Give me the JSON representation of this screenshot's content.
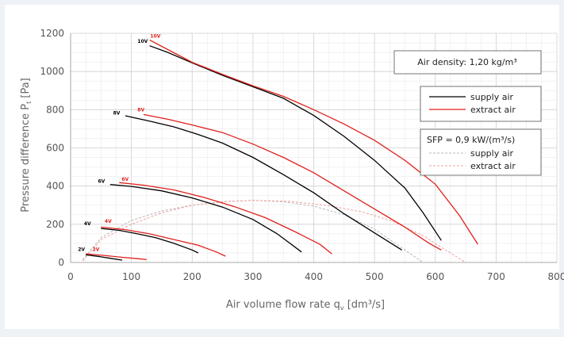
{
  "chart_data": {
    "type": "line",
    "xlabel_main": "Air volume flow rate q",
    "xlabel_sub": "v",
    "xlabel_unit": " [dm³/s]",
    "ylabel_main": "Pressure difference  P",
    "ylabel_sub": "t",
    "ylabel_unit": " [Pa]",
    "xlim": [
      0,
      800
    ],
    "ylim": [
      0,
      1200
    ],
    "x_ticks": [
      0,
      100,
      200,
      300,
      400,
      500,
      600,
      700,
      800
    ],
    "y_ticks": [
      0,
      200,
      400,
      600,
      800,
      1000,
      1200
    ],
    "grid": true,
    "density_note": "Air density: 1,20 kg/m³",
    "legend_main": [
      {
        "label": "supply air",
        "color": "#000000",
        "dashed": false
      },
      {
        "label": "extract air",
        "color": "#e0201b",
        "dashed": false
      }
    ],
    "legend_sfp_title": "SFP = 0,9 kW/(m³/s)",
    "legend_sfp": [
      {
        "label": "supply air",
        "color": "#b8b8b8",
        "dashed": true
      },
      {
        "label": "extract air",
        "color": "#f0a0a0",
        "dashed": true
      }
    ],
    "colors": {
      "supply": "#000000",
      "extract": "#e0201b",
      "sfp_supply": "#b8b8b8",
      "sfp_extract": "#f0a0a0"
    },
    "series": [
      {
        "name": "supply air",
        "voltage": "10V",
        "color": "#000000",
        "points": [
          [
            130,
            1135
          ],
          [
            160,
            1100
          ],
          [
            200,
            1045
          ],
          [
            250,
            980
          ],
          [
            300,
            920
          ],
          [
            350,
            860
          ],
          [
            400,
            770
          ],
          [
            450,
            660
          ],
          [
            500,
            535
          ],
          [
            550,
            390
          ],
          [
            580,
            260
          ],
          [
            610,
            115
          ]
        ]
      },
      {
        "name": "extract air",
        "voltage": "10V",
        "color": "#e0201b",
        "points": [
          [
            130,
            1165
          ],
          [
            160,
            1115
          ],
          [
            200,
            1048
          ],
          [
            250,
            985
          ],
          [
            300,
            925
          ],
          [
            350,
            870
          ],
          [
            400,
            800
          ],
          [
            450,
            725
          ],
          [
            500,
            640
          ],
          [
            550,
            535
          ],
          [
            600,
            410
          ],
          [
            640,
            245
          ],
          [
            670,
            95
          ]
        ]
      },
      {
        "name": "supply air",
        "voltage": "8V",
        "color": "#000000",
        "points": [
          [
            90,
            768
          ],
          [
            130,
            740
          ],
          [
            170,
            710
          ],
          [
            210,
            670
          ],
          [
            250,
            625
          ],
          [
            300,
            550
          ],
          [
            350,
            460
          ],
          [
            400,
            365
          ],
          [
            450,
            255
          ],
          [
            500,
            155
          ],
          [
            545,
            65
          ]
        ]
      },
      {
        "name": "extract air",
        "voltage": "8V",
        "color": "#e0201b",
        "points": [
          [
            120,
            775
          ],
          [
            160,
            750
          ],
          [
            200,
            720
          ],
          [
            250,
            680
          ],
          [
            300,
            620
          ],
          [
            350,
            550
          ],
          [
            400,
            470
          ],
          [
            450,
            375
          ],
          [
            500,
            280
          ],
          [
            550,
            185
          ],
          [
            590,
            100
          ],
          [
            610,
            65
          ]
        ]
      },
      {
        "name": "supply air",
        "voltage": "6V",
        "color": "#000000",
        "points": [
          [
            65,
            408
          ],
          [
            100,
            398
          ],
          [
            150,
            375
          ],
          [
            200,
            338
          ],
          [
            250,
            290
          ],
          [
            300,
            225
          ],
          [
            340,
            150
          ],
          [
            380,
            55
          ]
        ]
      },
      {
        "name": "extract air",
        "voltage": "6V",
        "color": "#e0201b",
        "points": [
          [
            80,
            418
          ],
          [
            120,
            405
          ],
          [
            170,
            380
          ],
          [
            220,
            340
          ],
          [
            270,
            292
          ],
          [
            320,
            235
          ],
          [
            370,
            160
          ],
          [
            410,
            95
          ],
          [
            430,
            45
          ]
        ]
      },
      {
        "name": "supply air",
        "voltage": "4V",
        "color": "#000000",
        "points": [
          [
            50,
            178
          ],
          [
            80,
            168
          ],
          [
            110,
            150
          ],
          [
            140,
            130
          ],
          [
            170,
            100
          ],
          [
            200,
            65
          ],
          [
            210,
            50
          ]
        ]
      },
      {
        "name": "extract air",
        "voltage": "4V",
        "color": "#e0201b",
        "points": [
          [
            50,
            185
          ],
          [
            90,
            172
          ],
          [
            130,
            150
          ],
          [
            170,
            120
          ],
          [
            210,
            90
          ],
          [
            240,
            55
          ],
          [
            255,
            33
          ]
        ]
      },
      {
        "name": "supply air",
        "voltage": "2V",
        "color": "#000000",
        "points": [
          [
            25,
            40
          ],
          [
            45,
            32
          ],
          [
            65,
            22
          ],
          [
            85,
            12
          ]
        ]
      },
      {
        "name": "extract air",
        "voltage": "2V",
        "color": "#e0201b",
        "points": [
          [
            25,
            45
          ],
          [
            55,
            37
          ],
          [
            85,
            27
          ],
          [
            110,
            20
          ],
          [
            125,
            15
          ]
        ]
      }
    ],
    "sfp_series": [
      {
        "name": "supply air",
        "color": "#b8b8b8",
        "points": [
          [
            20,
            15
          ],
          [
            50,
            130
          ],
          [
            100,
            220
          ],
          [
            150,
            270
          ],
          [
            200,
            300
          ],
          [
            250,
            318
          ],
          [
            300,
            325
          ],
          [
            350,
            318
          ],
          [
            400,
            295
          ],
          [
            450,
            250
          ],
          [
            500,
            175
          ],
          [
            550,
            65
          ],
          [
            580,
            0
          ]
        ]
      },
      {
        "name": "extract air",
        "color": "#f0a0a0",
        "points": [
          [
            20,
            8
          ],
          [
            50,
            120
          ],
          [
            100,
            200
          ],
          [
            150,
            260
          ],
          [
            200,
            300
          ],
          [
            260,
            320
          ],
          [
            300,
            325
          ],
          [
            360,
            320
          ],
          [
            420,
            300
          ],
          [
            480,
            265
          ],
          [
            530,
            215
          ],
          [
            580,
            140
          ],
          [
            630,
            40
          ],
          [
            650,
            0
          ]
        ]
      }
    ],
    "curve_labels": [
      {
        "text": "10V",
        "x": 110,
        "y": 1150,
        "color": "#000000"
      },
      {
        "text": "10V",
        "x": 131,
        "y": 1178,
        "color": "#e0201b"
      },
      {
        "text": "8V",
        "x": 70,
        "y": 775,
        "color": "#000000"
      },
      {
        "text": "8V",
        "x": 110,
        "y": 790,
        "color": "#e0201b"
      },
      {
        "text": "6V",
        "x": 45,
        "y": 418,
        "color": "#000000"
      },
      {
        "text": "6V",
        "x": 84,
        "y": 428,
        "color": "#e0201b"
      },
      {
        "text": "4V",
        "x": 22,
        "y": 195,
        "color": "#000000"
      },
      {
        "text": "4V",
        "x": 56,
        "y": 208,
        "color": "#e0201b"
      },
      {
        "text": "2V",
        "x": 12,
        "y": 60,
        "color": "#000000"
      },
      {
        "text": "2V",
        "x": 36,
        "y": 60,
        "color": "#e0201b"
      }
    ]
  }
}
